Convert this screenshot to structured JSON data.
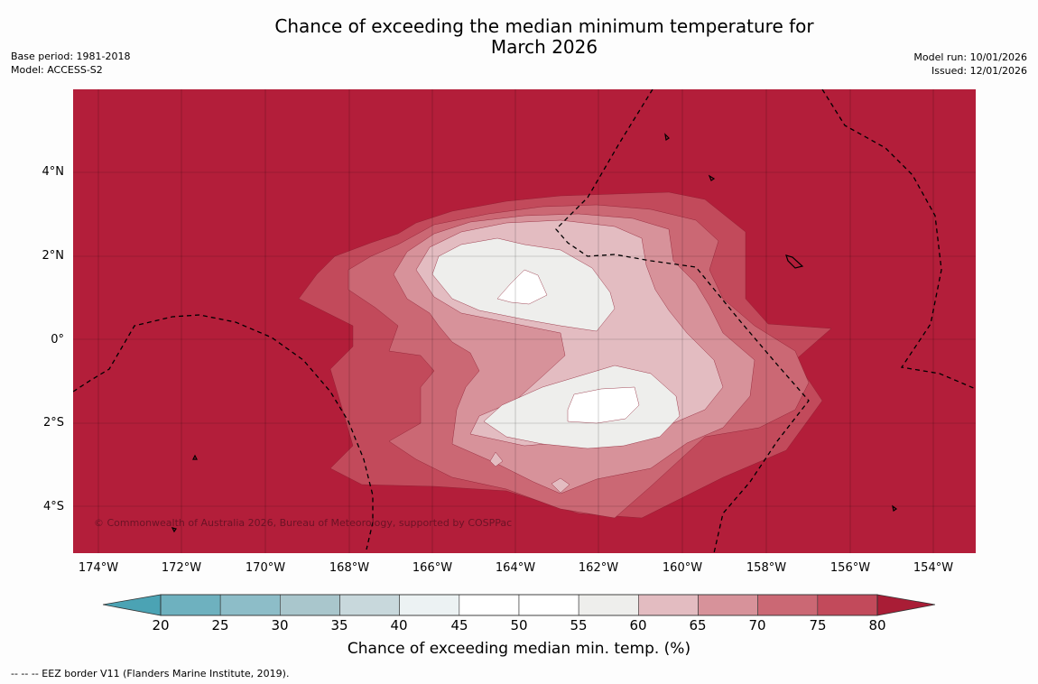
{
  "title": {
    "line1": "Chance of exceeding the median minimum temperature for",
    "line2": "March 2026"
  },
  "meta_left": {
    "base_period": "Base period: 1981-2018",
    "model": "Model: ACCESS-S2"
  },
  "meta_right": {
    "model_run": "Model run: 10/01/2026",
    "issued": "Issued: 12/01/2026"
  },
  "map": {
    "lat_ticks": [
      "4°N",
      "2°N",
      "0°",
      "2°S",
      "4°S"
    ],
    "lon_ticks": [
      "174°W",
      "172°W",
      "170°W",
      "168°W",
      "166°W",
      "164°W",
      "162°W",
      "160°W",
      "158°W",
      "156°W",
      "154°W"
    ],
    "copyright": "© Commonwealth of Australia 2026, Bureau of Meteorology, supported by COSPPac",
    "colors": {
      "ge80": "#b31e3a",
      "75_80": "#c24a5b",
      "70_75": "#cb6874",
      "65_70": "#d7929a",
      "60_65": "#e3bcc1",
      "55_60": "#eeeeec",
      "50_55": "#ffffff"
    }
  },
  "colorbar": {
    "labels": [
      "20",
      "25",
      "30",
      "35",
      "40",
      "45",
      "50",
      "55",
      "60",
      "65",
      "70",
      "75",
      "80"
    ],
    "colors": [
      "#6eb1bf",
      "#8dbdc8",
      "#a9c6cc",
      "#c8d8dc",
      "#ecf2f3",
      "#ffffff",
      "#ffffff",
      "#eeeeec",
      "#e3bcc1",
      "#d7929a",
      "#cb6874",
      "#c24a5b"
    ],
    "low_extend_color": "#4ba3b4",
    "high_extend_color": "#a91d36",
    "title": "Chance of exceeding median min. temp. (%)"
  },
  "footnote": "--  --  -- EEZ border V11 (Flanders Marine Institute, 2019)."
}
